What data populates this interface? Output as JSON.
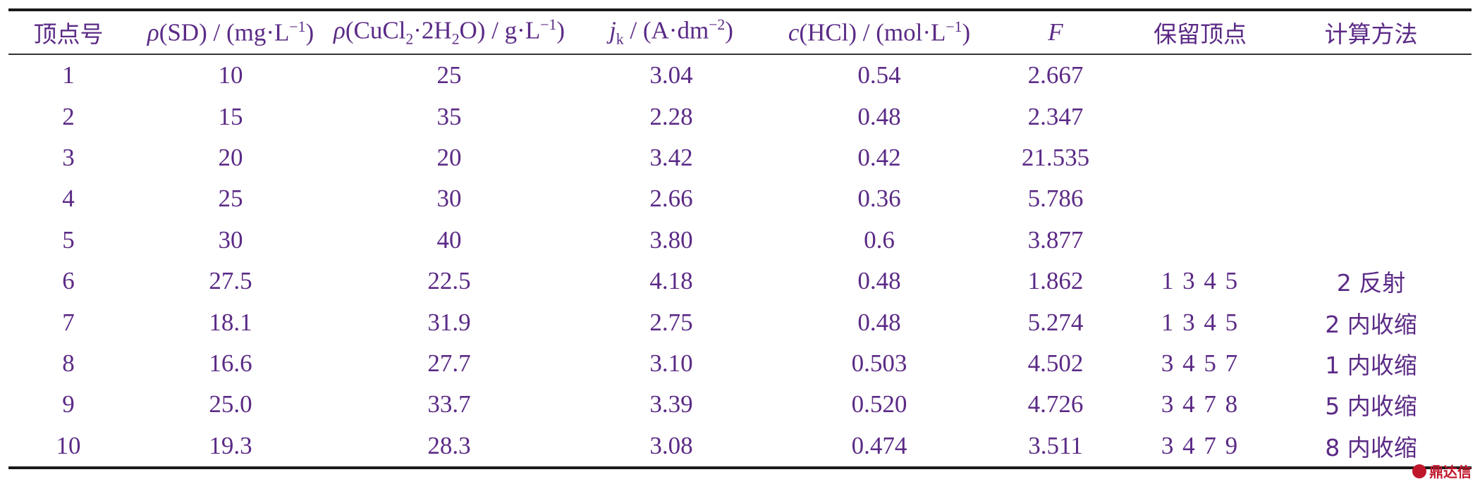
{
  "header": {
    "vertex_no": "顶点号",
    "sd_conc": {
      "sym": "ρ",
      "text": "(SD) / (mg·L",
      "exp": "−1",
      "close": ")"
    },
    "cucl2_conc": {
      "sym": "ρ",
      "open": "(CuCl",
      "sub1": "2",
      "mid": "·2H",
      "sub2": "2",
      "text2": "O) / g·L",
      "exp": "−1",
      "close": ")"
    },
    "current_density": {
      "sym": "j",
      "sub": "k",
      "text": " / (A·dm",
      "exp": "−2",
      "close": ")"
    },
    "hcl_conc": {
      "sym": "c",
      "text": "(HCl) / (mol·L",
      "exp": "−1",
      "close": ")"
    },
    "f_value": "F",
    "retained_vertices": "保留顶点",
    "calc_method": "计算方法"
  },
  "rows": [
    [
      "1",
      "10",
      "25",
      "3.04",
      "0.54",
      "2.667",
      "",
      ""
    ],
    [
      "2",
      "15",
      "35",
      "2.28",
      "0.48",
      "2.347",
      "",
      ""
    ],
    [
      "3",
      "20",
      "20",
      "3.42",
      "0.42",
      "21.535",
      "",
      ""
    ],
    [
      "4",
      "25",
      "30",
      "2.66",
      "0.36",
      "5.786",
      "",
      ""
    ],
    [
      "5",
      "30",
      "40",
      "3.80",
      "0.6",
      "3.877",
      "",
      ""
    ],
    [
      "6",
      "27.5",
      "22.5",
      "4.18",
      "0.48",
      "1.862",
      "1 3 4 5",
      "2 反射"
    ],
    [
      "7",
      "18.1",
      "31.9",
      "2.75",
      "0.48",
      "5.274",
      "1 3 4 5",
      "2 内收缩"
    ],
    [
      "8",
      "16.6",
      "27.7",
      "3.10",
      "0.503",
      "4.502",
      "3 4 5 7",
      "1 内收缩"
    ],
    [
      "9",
      "25.0",
      "33.7",
      "3.39",
      "0.520",
      "4.726",
      "3 4 7 8",
      "5 内收缩"
    ],
    [
      "10",
      "19.3",
      "28.3",
      "3.08",
      "0.474",
      "3.511",
      "3 4 7 9",
      "8 内收缩"
    ]
  ],
  "watermark": "鼎达信",
  "colors": {
    "text": "#5b2a86",
    "caption": "#b8732e",
    "rule": "#1a1a1a",
    "watermark": "#c0162b"
  }
}
